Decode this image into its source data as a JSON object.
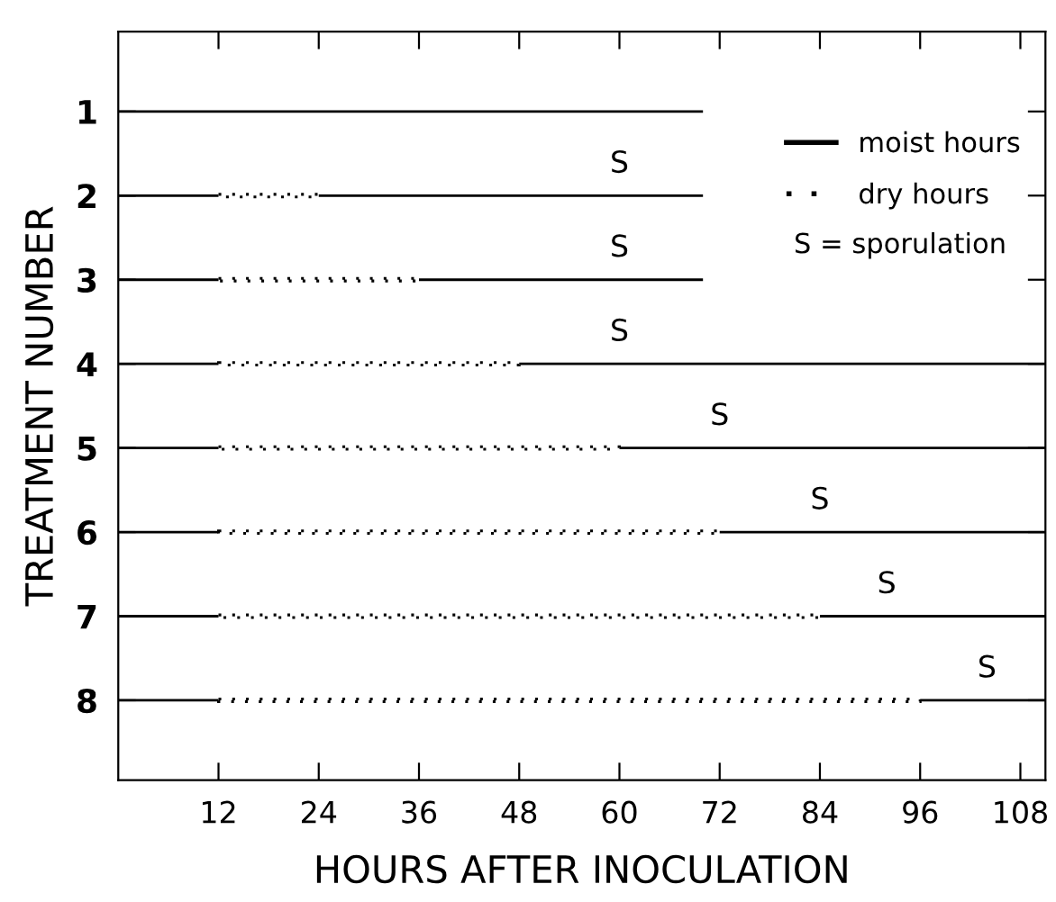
{
  "chart_data": {
    "type": "bar",
    "orientation": "horizontal",
    "stacked": true,
    "xlabel": "HOURS AFTER INOCULATION",
    "ylabel": "TREATMENT NUMBER",
    "categories": [
      "1",
      "2",
      "3",
      "4",
      "5",
      "6",
      "7",
      "8"
    ],
    "series": [
      {
        "name": "moist hours",
        "color": "#000000",
        "line_style": "solid",
        "values": [
          70,
          12,
          12,
          12,
          12,
          12,
          12,
          12
        ]
      },
      {
        "name": "dry hours",
        "color": "#000000",
        "line_style": "dotted",
        "values": [
          0,
          12,
          24,
          36,
          48,
          60,
          72,
          84
        ]
      },
      {
        "color": "#000000",
        "line_style": "solid",
        "values": [
          0,
          46,
          34,
          63,
          51,
          39,
          27,
          15
        ]
      }
    ],
    "xlim": [
      0,
      111
    ],
    "xticks": [
      12,
      24,
      36,
      48,
      60,
      72,
      84,
      96,
      108
    ],
    "annotations": [
      {
        "text": "S",
        "x": 60,
        "y": "2"
      },
      {
        "text": "S",
        "x": 60,
        "y": "3"
      },
      {
        "text": "S",
        "x": 60,
        "y": "4"
      },
      {
        "text": "S",
        "x": 72,
        "y": "5"
      },
      {
        "text": "S",
        "x": 84,
        "y": "6"
      },
      {
        "text": "S",
        "x": 92,
        "y": "7"
      },
      {
        "text": "S",
        "x": 104,
        "y": "8"
      },
      "S = sporulation"
    ],
    "legend": "top right",
    "grid": false
  }
}
